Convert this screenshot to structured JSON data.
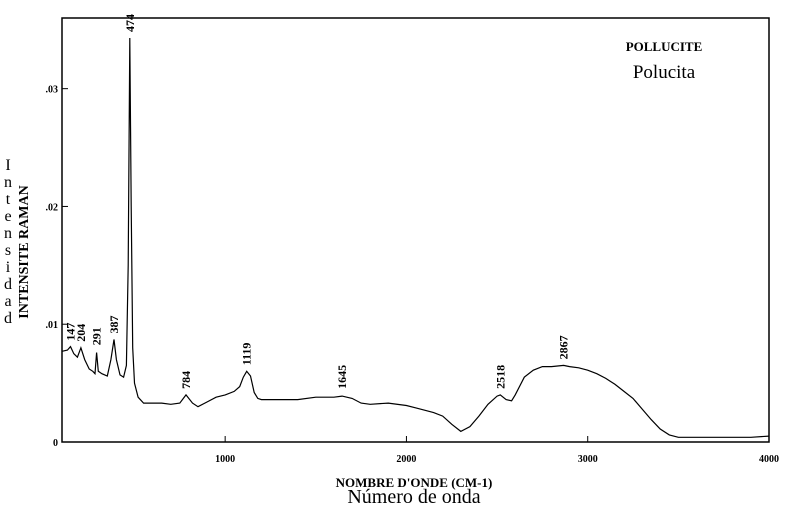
{
  "chart_data": {
    "type": "line",
    "title": "POLLUCITE",
    "subtitle": "Polucita",
    "xlabel": "NOMBRE D'ONDE (CM-1)",
    "xlabel_secondary": "Número de onda",
    "ylabel": "INTENSITE RAMAN",
    "ylabel_secondary": "Intensidad",
    "xlim": [
      100,
      4000
    ],
    "ylim": [
      0,
      0.036
    ],
    "x_ticks": [
      1000,
      2000,
      3000,
      4000
    ],
    "x_tick_labels": [
      "1000",
      "2000",
      "3000",
      "4000"
    ],
    "y_ticks": [
      0,
      0.01,
      0.02,
      0.03
    ],
    "y_tick_labels": [
      "0",
      ".01",
      ".02",
      ".03"
    ],
    "grid": false,
    "line_color": "#000000",
    "peak_labels": [
      {
        "text": "147",
        "x": 147,
        "y": 0.0081
      },
      {
        "text": "204",
        "x": 204,
        "y": 0.008
      },
      {
        "text": "291",
        "x": 291,
        "y": 0.0077
      },
      {
        "text": "387",
        "x": 387,
        "y": 0.0087
      },
      {
        "text": "474",
        "x": 474,
        "y": 0.0343
      },
      {
        "text": "784",
        "x": 784,
        "y": 0.004
      },
      {
        "text": "1119",
        "x": 1119,
        "y": 0.006
      },
      {
        "text": "1645",
        "x": 1645,
        "y": 0.004
      },
      {
        "text": "2518",
        "x": 2518,
        "y": 0.004
      },
      {
        "text": "2867",
        "x": 2867,
        "y": 0.0065
      }
    ],
    "series": [
      {
        "x": [
          100,
          130,
          147,
          165,
          185,
          204,
          225,
          250,
          270,
          282,
          291,
          300,
          320,
          350,
          370,
          387,
          400,
          420,
          440,
          455,
          465,
          474,
          482,
          490,
          500,
          520,
          550,
          600,
          650,
          700,
          750,
          784,
          820,
          850,
          900,
          950,
          1000,
          1050,
          1080,
          1100,
          1119,
          1140,
          1160,
          1180,
          1200,
          1300,
          1400,
          1500,
          1600,
          1645,
          1700,
          1750,
          1800,
          1900,
          2000,
          2050,
          2100,
          2150,
          2200,
          2250,
          2300,
          2350,
          2400,
          2450,
          2500,
          2518,
          2550,
          2580,
          2600,
          2650,
          2700,
          2750,
          2800,
          2867,
          2900,
          2950,
          3000,
          3050,
          3100,
          3150,
          3200,
          3250,
          3300,
          3350,
          3400,
          3450,
          3500,
          3600,
          3700,
          3800,
          3900,
          4000
        ],
        "y": [
          0.0077,
          0.0078,
          0.0081,
          0.0075,
          0.0072,
          0.008,
          0.007,
          0.0062,
          0.006,
          0.0058,
          0.0076,
          0.006,
          0.0058,
          0.0056,
          0.007,
          0.0087,
          0.007,
          0.0057,
          0.0055,
          0.0065,
          0.015,
          0.0343,
          0.02,
          0.008,
          0.005,
          0.0038,
          0.0033,
          0.0033,
          0.0033,
          0.0032,
          0.0033,
          0.004,
          0.0033,
          0.003,
          0.0034,
          0.0038,
          0.004,
          0.0043,
          0.0047,
          0.0055,
          0.006,
          0.0056,
          0.0042,
          0.0037,
          0.0036,
          0.0036,
          0.0036,
          0.0038,
          0.0038,
          0.0039,
          0.0037,
          0.0033,
          0.0032,
          0.0033,
          0.0031,
          0.0029,
          0.0027,
          0.0025,
          0.0022,
          0.0015,
          0.0009,
          0.0013,
          0.0022,
          0.0032,
          0.0039,
          0.004,
          0.0036,
          0.0035,
          0.004,
          0.0055,
          0.0061,
          0.0064,
          0.0064,
          0.0065,
          0.0064,
          0.0063,
          0.0061,
          0.0058,
          0.0054,
          0.0049,
          0.0043,
          0.0037,
          0.0028,
          0.0019,
          0.0011,
          0.0006,
          0.0004,
          0.0004,
          0.0004,
          0.0004,
          0.0004,
          0.0005
        ]
      }
    ]
  }
}
